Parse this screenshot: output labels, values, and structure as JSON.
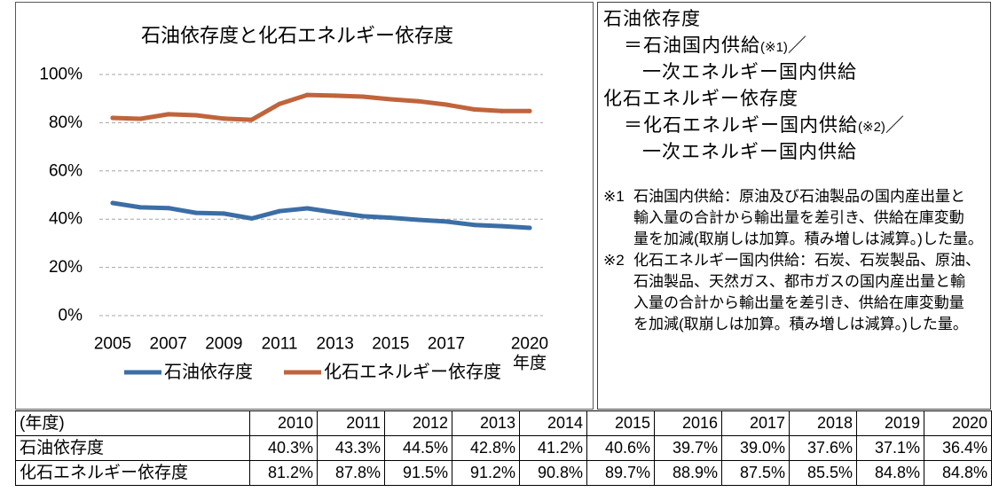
{
  "chart_data": {
    "type": "line",
    "title": "石油依存度と化石エネルギー依存度",
    "x": [
      2005,
      2006,
      2007,
      2008,
      2009,
      2010,
      2011,
      2012,
      2013,
      2014,
      2015,
      2016,
      2017,
      2018,
      2019,
      2020
    ],
    "x_tick_labels": [
      "2005",
      "2007",
      "2009",
      "2011",
      "2013",
      "2015",
      "2017",
      "2020"
    ],
    "xlabel": "年度",
    "y_tick_labels": [
      "0%",
      "20%",
      "40%",
      "60%",
      "80%",
      "100%"
    ],
    "ylim": [
      0,
      100
    ],
    "grid": "horizontal dashed",
    "legend_position": "bottom",
    "series": [
      {
        "name": "石油依存度",
        "color": "#3c6ea6",
        "values": [
          46.7,
          44.9,
          44.6,
          42.6,
          42.3,
          40.3,
          43.3,
          44.5,
          42.8,
          41.2,
          40.6,
          39.7,
          39.0,
          37.6,
          37.1,
          36.4
        ]
      },
      {
        "name": "化石エネルギー依存度",
        "color": "#c0643c",
        "values": [
          82.0,
          81.6,
          83.5,
          83.1,
          81.7,
          81.2,
          87.8,
          91.5,
          91.2,
          90.8,
          89.7,
          88.9,
          87.5,
          85.5,
          84.8,
          84.8
        ]
      }
    ]
  },
  "definitions": [
    {
      "term": "石油依存度",
      "numerator": "＝石油国内供給",
      "note_ref": "(※1)",
      "slash": "／",
      "denominator": "一次エネルギー国内供給"
    },
    {
      "term": "化石エネルギー依存度",
      "numerator": "＝化石エネルギー国内供給",
      "note_ref": "(※2)",
      "slash": "／",
      "denominator": "一次エネルギー国内供給"
    }
  ],
  "notes": [
    {
      "marker": "※1",
      "lines": [
        "石油国内供給：原油及び石油製品の国内産出量と",
        "輸入量の合計から輸出量を差引き、供給在庫変動",
        "量を加減(取崩しは加算。積み増しは減算。)した量。"
      ]
    },
    {
      "marker": "※2",
      "lines": [
        "化石エネルギー国内供給：石炭、石炭製品、原油、",
        "石油製品、天然ガス、都市ガスの国内産出量と輸",
        "入量の合計から輸出量を差引き、供給在庫変動量",
        "を加減(取崩しは加算。積み増しは減算。)した量。"
      ]
    }
  ],
  "table": {
    "header": [
      "(年度)",
      "2010",
      "2011",
      "2012",
      "2013",
      "2014",
      "2015",
      "2016",
      "2017",
      "2018",
      "2019",
      "2020"
    ],
    "rows": [
      {
        "label": "石油依存度",
        "values": [
          "40.3%",
          "43.3%",
          "44.5%",
          "42.8%",
          "41.2%",
          "40.6%",
          "39.7%",
          "39.0%",
          "37.6%",
          "37.1%",
          "36.4%"
        ]
      },
      {
        "label": "化石エネルギー依存度",
        "values": [
          "81.2%",
          "87.8%",
          "91.5%",
          "91.2%",
          "90.8%",
          "89.7%",
          "88.9%",
          "87.5%",
          "85.5%",
          "84.8%",
          "84.8%"
        ]
      }
    ]
  }
}
